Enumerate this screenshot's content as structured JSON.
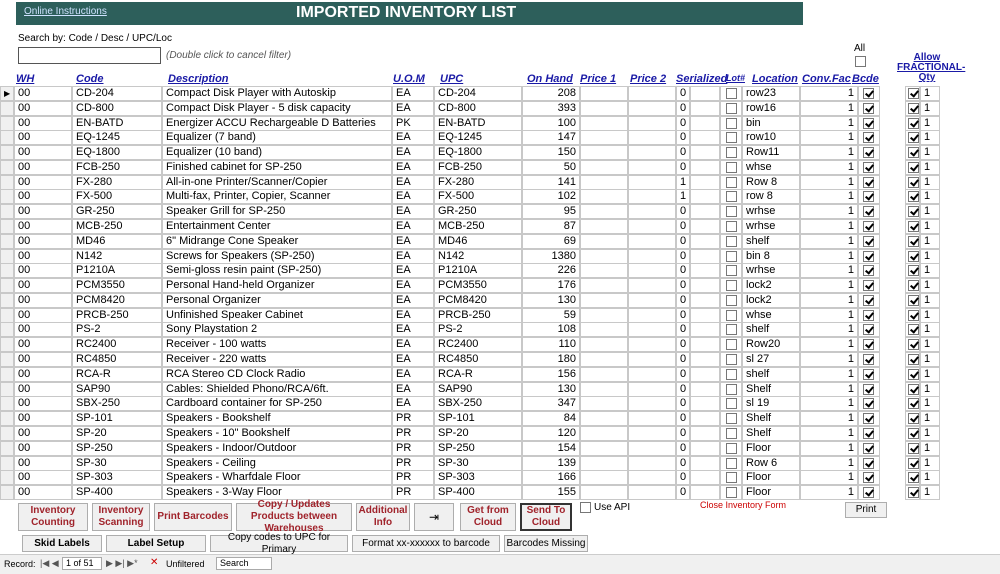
{
  "header": {
    "link": "Online Instructions",
    "title": "IMPORTED INVENTORY LIST"
  },
  "search": {
    "label": "Search by: Code / Desc / UPC/Loc",
    "hint": "(Double click to cancel filter)"
  },
  "table": {
    "all_label": "All",
    "columns": [
      "WH",
      "Code",
      "Description",
      "U.O.M",
      "UPC",
      "On Hand",
      "Price 1",
      "Price 2",
      "Serialized",
      "Lot#",
      "Location",
      "Conv.Fac",
      "Bcde",
      "Allow FRACTIONAL-Qty"
    ],
    "rows": [
      [
        "00",
        "CD-204",
        "Compact Disk Player with Autoskip",
        "EA",
        "CD-204",
        208,
        0,
        "row23",
        1,
        1
      ],
      [
        "00",
        "CD-800",
        "Compact Disk Player - 5 disk capacity",
        "EA",
        "CD-800",
        393,
        0,
        "row16",
        1,
        1
      ],
      [
        "00",
        "EN-BATD",
        "Energizer ACCU Rechargeable D Batteries",
        "PK",
        "EN-BATD",
        100,
        0,
        "bin",
        1,
        1
      ],
      [
        "00",
        "EQ-1245",
        "Equalizer (7 band)",
        "EA",
        "EQ-1245",
        147,
        0,
        "row10",
        1,
        1
      ],
      [
        "00",
        "EQ-1800",
        "Equalizer (10 band)",
        "EA",
        "EQ-1800",
        150,
        0,
        "Row11",
        1,
        1
      ],
      [
        "00",
        "FCB-250",
        "Finished cabinet for SP-250",
        "EA",
        "FCB-250",
        50,
        0,
        "whse",
        1,
        1
      ],
      [
        "00",
        "FX-280",
        "All-in-one Printer/Scanner/Copier",
        "EA",
        "FX-280",
        141,
        1,
        "Row 8",
        1,
        1
      ],
      [
        "00",
        "FX-500",
        "Multi-fax, Printer, Copier, Scanner",
        "EA",
        "FX-500",
        102,
        1,
        "row 8",
        1,
        1
      ],
      [
        "00",
        "GR-250",
        "Speaker Grill for SP-250",
        "EA",
        "GR-250",
        95,
        0,
        "wrhse",
        1,
        1
      ],
      [
        "00",
        "MCB-250",
        "Entertainment Center",
        "EA",
        "MCB-250",
        87,
        0,
        "wrhse",
        1,
        1
      ],
      [
        "00",
        "MD46",
        "6\" Midrange Cone Speaker",
        "EA",
        "MD46",
        69,
        0,
        "shelf",
        1,
        1
      ],
      [
        "00",
        "N142",
        "Screws for Speakers (SP-250)",
        "EA",
        "N142",
        1380,
        0,
        "bin 8",
        1,
        1
      ],
      [
        "00",
        "P1210A",
        "Semi-gloss resin paint (SP-250)",
        "EA",
        "P1210A",
        226,
        0,
        "wrhse",
        1,
        1
      ],
      [
        "00",
        "PCM3550",
        "Personal Hand-held Organizer",
        "EA",
        "PCM3550",
        176,
        0,
        "lock2",
        1,
        1
      ],
      [
        "00",
        "PCM8420",
        "Personal Organizer",
        "EA",
        "PCM8420",
        130,
        0,
        "lock2",
        1,
        1
      ],
      [
        "00",
        "PRCB-250",
        "Unfinished Speaker Cabinet",
        "EA",
        "PRCB-250",
        59,
        0,
        "whse",
        1,
        1
      ],
      [
        "00",
        "PS-2",
        "Sony Playstation 2",
        "EA",
        "PS-2",
        108,
        0,
        "shelf",
        1,
        1
      ],
      [
        "00",
        "RC2400",
        "Receiver - 100 watts",
        "EA",
        "RC2400",
        110,
        0,
        "Row20",
        1,
        1
      ],
      [
        "00",
        "RC4850",
        "Receiver - 220 watts",
        "EA",
        "RC4850",
        180,
        0,
        "sl 27",
        1,
        1
      ],
      [
        "00",
        "RCA-R",
        "RCA Stereo CD Clock Radio",
        "EA",
        "RCA-R",
        156,
        0,
        "shelf",
        1,
        1
      ],
      [
        "00",
        "SAP90",
        "Cables: Shielded Phono/RCA/6ft.",
        "EA",
        "SAP90",
        130,
        0,
        "Shelf",
        1,
        1
      ],
      [
        "00",
        "SBX-250",
        "Cardboard container for SP-250",
        "EA",
        "SBX-250",
        347,
        0,
        "sl 19",
        1,
        1
      ],
      [
        "00",
        "SP-101",
        "Speakers - Bookshelf",
        "PR",
        "SP-101",
        84,
        0,
        "Shelf",
        1,
        1
      ],
      [
        "00",
        "SP-20",
        "Speakers - 10\" Bookshelf",
        "PR",
        "SP-20",
        120,
        0,
        "Shelf",
        1,
        1
      ],
      [
        "00",
        "SP-250",
        "Speakers - Indoor/Outdoor",
        "PR",
        "SP-250",
        154,
        0,
        "Floor",
        1,
        1
      ],
      [
        "00",
        "SP-30",
        "Speakers - Ceiling",
        "PR",
        "SP-30",
        139,
        0,
        "Row 6",
        1,
        1
      ],
      [
        "00",
        "SP-303",
        "Speakers - Wharfdale Floor",
        "PR",
        "SP-303",
        166,
        0,
        "Floor",
        1,
        1
      ],
      [
        "00",
        "SP-400",
        "Speakers - 3-Way Floor",
        "PR",
        "SP-400",
        155,
        0,
        "Floor",
        1,
        1
      ]
    ]
  },
  "buttons": [
    "Inventory Counting",
    "Inventory Scanning",
    "Print Barcodes",
    "Copy / Updates Products between Warehouses",
    "Additional Info",
    "Get from Cloud",
    "Send To Cloud"
  ],
  "use_api": "Use API",
  "close": "Close Inventory Form",
  "print": "Print",
  "buttons2": [
    "Skid Labels",
    "Label Setup",
    "Copy codes to UPC for Primary",
    "Format xx-xxxxxx to barcode",
    "Barcodes Missing"
  ],
  "status": {
    "record": "Record:",
    "position": "1 of 51",
    "filter": "Unfiltered",
    "search": "Search"
  }
}
